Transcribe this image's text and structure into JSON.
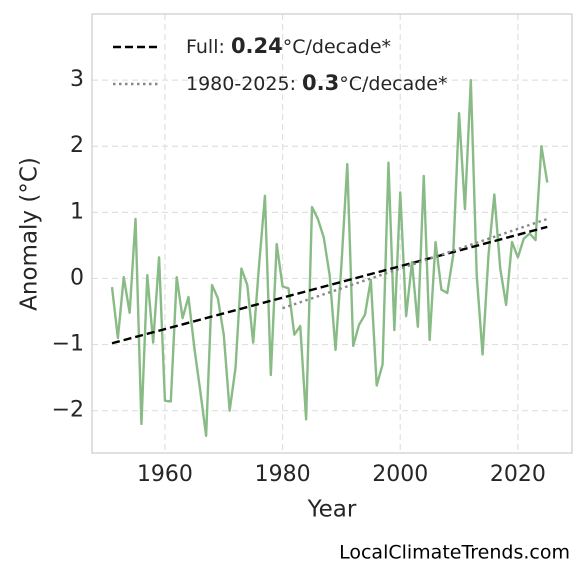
{
  "chart_data": {
    "type": "line",
    "x": [
      1951,
      1952,
      1953,
      1954,
      1955,
      1956,
      1957,
      1958,
      1959,
      1960,
      1961,
      1962,
      1963,
      1964,
      1965,
      1966,
      1967,
      1968,
      1969,
      1970,
      1971,
      1972,
      1973,
      1974,
      1975,
      1976,
      1977,
      1978,
      1979,
      1980,
      1981,
      1982,
      1983,
      1984,
      1985,
      1986,
      1987,
      1988,
      1989,
      1990,
      1991,
      1992,
      1993,
      1994,
      1995,
      1996,
      1997,
      1998,
      1999,
      2000,
      2001,
      2002,
      2003,
      2004,
      2005,
      2006,
      2007,
      2008,
      2009,
      2010,
      2011,
      2012,
      2013,
      2014,
      2015,
      2016,
      2017,
      2018,
      2019,
      2020,
      2021,
      2022,
      2023,
      2024,
      2025
    ],
    "values": [
      -0.13,
      -0.9,
      0.02,
      -0.52,
      0.9,
      -2.2,
      0.05,
      -0.97,
      0.32,
      -1.85,
      -1.86,
      0.02,
      -0.6,
      -0.28,
      -1.05,
      -1.7,
      -2.38,
      -0.1,
      -0.3,
      -0.85,
      -2.0,
      -1.35,
      0.15,
      -0.1,
      -0.97,
      0.2,
      1.25,
      -1.46,
      0.52,
      -0.12,
      -0.15,
      -0.85,
      -0.72,
      -2.13,
      1.08,
      0.9,
      0.62,
      0.05,
      -1.08,
      0.2,
      1.73,
      -1.02,
      -0.7,
      -0.55,
      -0.02,
      -1.62,
      -1.3,
      1.75,
      -0.78,
      1.3,
      -0.57,
      0.25,
      -0.73,
      1.55,
      -0.93,
      0.55,
      -0.17,
      -0.22,
      0.35,
      2.5,
      1.05,
      3.0,
      0.05,
      -1.15,
      0.35,
      1.27,
      0.15,
      -0.4,
      0.55,
      0.32,
      0.6,
      0.68,
      0.58,
      2.0,
      1.45
    ],
    "color": "#88bb85",
    "trends": [
      {
        "name_parts": [
          "Full: ",
          "0.24",
          "°C/decade*"
        ],
        "x": [
          1951,
          2025
        ],
        "values": [
          -0.98,
          0.78
        ],
        "color": "#000000",
        "dash": "dashed"
      },
      {
        "name_parts": [
          "1980-2025: ",
          "0.3",
          "°C/decade*"
        ],
        "x": [
          1980,
          2025
        ],
        "values": [
          -0.45,
          0.9
        ],
        "color": "#888888",
        "dash": "dotted"
      }
    ],
    "xlabel": "Year",
    "ylabel": "Anomaly (°C)",
    "xlim": [
      1947.6,
      2029.2
    ],
    "ylim": [
      -2.64,
      4.0
    ],
    "xticks": [
      1960,
      1980,
      2000,
      2020
    ],
    "yticks": [
      {
        "value": -2,
        "label": "−2"
      },
      {
        "value": -1,
        "label": "−1"
      },
      0,
      1,
      2,
      3
    ],
    "grid": true,
    "legend": "upper left",
    "footer": "LocalClimateTrends.com"
  }
}
